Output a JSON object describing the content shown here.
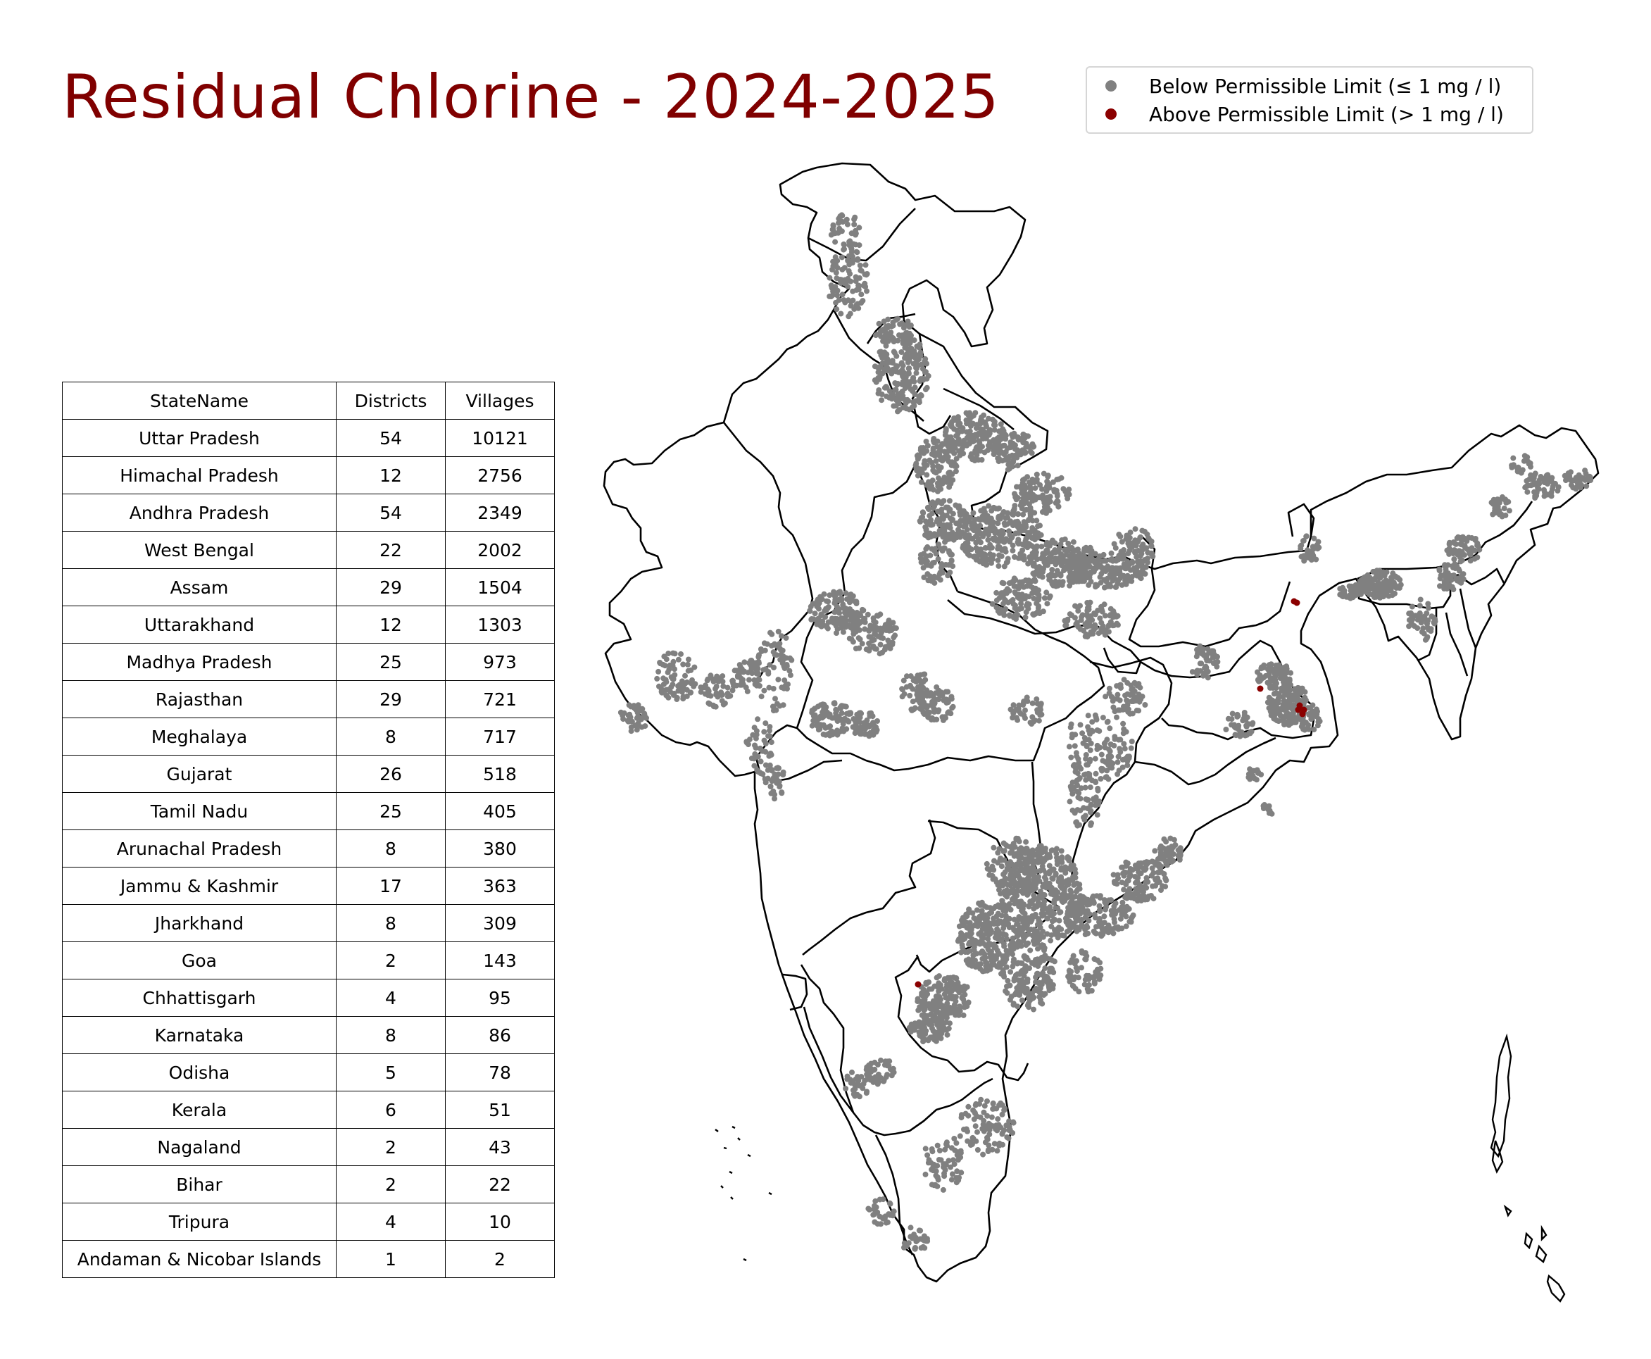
{
  "title": "Residual Chlorine - 2024-2025",
  "legend": [
    {
      "label": "Below Permissible Limit (≤ 1 mg / l)",
      "color": "#808080"
    },
    {
      "label": "Above Permissible Limit (> 1 mg / l)",
      "color": "#8b0000"
    }
  ],
  "table": {
    "headers": [
      "StateName",
      "Districts",
      "Villages"
    ],
    "rows": [
      [
        "Uttar Pradesh",
        "54",
        "10121"
      ],
      [
        "Himachal Pradesh",
        "12",
        "2756"
      ],
      [
        "Andhra Pradesh",
        "54",
        "2349"
      ],
      [
        "West Bengal",
        "22",
        "2002"
      ],
      [
        "Assam",
        "29",
        "1504"
      ],
      [
        "Uttarakhand",
        "12",
        "1303"
      ],
      [
        "Madhya Pradesh",
        "25",
        "973"
      ],
      [
        "Rajasthan",
        "29",
        "721"
      ],
      [
        "Meghalaya",
        "8",
        "717"
      ],
      [
        "Gujarat",
        "26",
        "518"
      ],
      [
        "Tamil Nadu",
        "25",
        "405"
      ],
      [
        "Arunachal Pradesh",
        "8",
        "380"
      ],
      [
        "Jammu & Kashmir",
        "17",
        "363"
      ],
      [
        "Jharkhand",
        "8",
        "309"
      ],
      [
        "Goa",
        "2",
        "143"
      ],
      [
        "Chhattisgarh",
        "4",
        "95"
      ],
      [
        "Karnataka",
        "8",
        "86"
      ],
      [
        "Odisha",
        "5",
        "78"
      ],
      [
        "Kerala",
        "6",
        "51"
      ],
      [
        "Nagaland",
        "2",
        "43"
      ],
      [
        "Bihar",
        "2",
        "22"
      ],
      [
        "Tripura",
        "4",
        "10"
      ],
      [
        "Andaman & Nicobar Islands",
        "1",
        "2"
      ]
    ]
  },
  "map": {
    "country": "India",
    "boundary_color": "#000000",
    "below_color": "#808080",
    "above_color": "#8b0000"
  }
}
